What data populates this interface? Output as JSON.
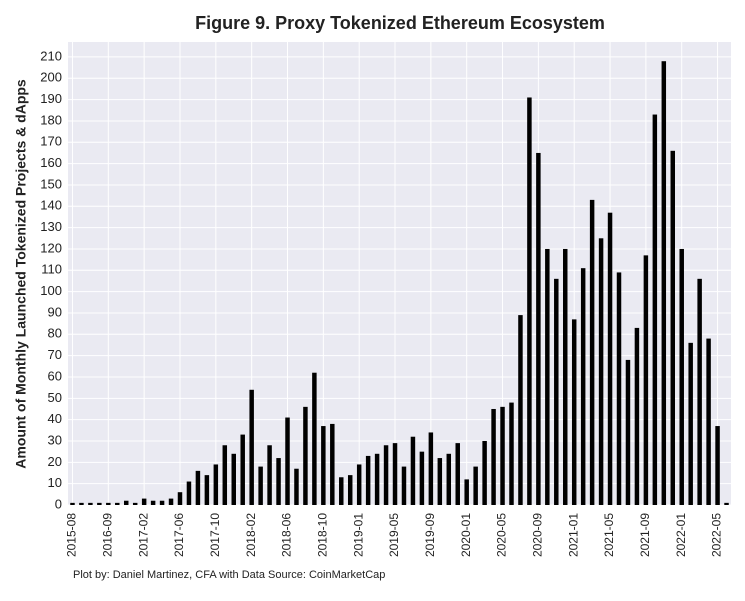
{
  "chart_data": {
    "type": "bar",
    "title": "Figure 9. Proxy Tokenized Ethereum Ecosystem",
    "y_label": "Amount of Monthly Launched Tokenized Projects & dApps",
    "footnote": "Plot by: Daniel Martinez, CFA with Data Source: CoinMarketCap",
    "categories": [
      "2015-08",
      null,
      null,
      null,
      "2016-09",
      null,
      null,
      null,
      "2017-02",
      null,
      null,
      null,
      "2017-06",
      null,
      null,
      null,
      "2017-10",
      null,
      null,
      null,
      "2018-02",
      null,
      null,
      null,
      "2018-06",
      null,
      null,
      null,
      "2018-10",
      null,
      null,
      null,
      "2019-01",
      null,
      null,
      null,
      "2019-05",
      null,
      null,
      null,
      "2019-09",
      null,
      null,
      null,
      "2020-01",
      null,
      null,
      null,
      "2020-05",
      null,
      null,
      null,
      "2020-09",
      null,
      null,
      null,
      "2021-01",
      null,
      null,
      null,
      "2021-05",
      null,
      null,
      null,
      "2021-09",
      null,
      null,
      null,
      "2022-01",
      null,
      null,
      null,
      "2022-05",
      null
    ],
    "values": [
      1,
      1,
      1,
      1,
      1,
      1,
      2,
      1,
      3,
      2,
      2,
      3,
      6,
      11,
      16,
      14,
      19,
      28,
      24,
      33,
      54,
      18,
      28,
      22,
      41,
      17,
      46,
      62,
      37,
      38,
      13,
      14,
      19,
      23,
      24,
      28,
      29,
      18,
      32,
      25,
      34,
      22,
      24,
      29,
      12,
      18,
      30,
      45,
      46,
      48,
      89,
      191,
      165,
      120,
      106,
      120,
      87,
      111,
      143,
      125,
      137,
      109,
      68,
      83,
      117,
      183,
      208,
      166,
      120,
      76,
      106,
      78,
      37,
      1
    ],
    "color": "#000000",
    "ylim": [
      0,
      217
    ],
    "yticks": [
      0,
      10,
      20,
      30,
      40,
      50,
      60,
      70,
      80,
      90,
      100,
      110,
      120,
      130,
      140,
      150,
      160,
      170,
      180,
      190,
      200,
      210
    ],
    "grid": true
  }
}
